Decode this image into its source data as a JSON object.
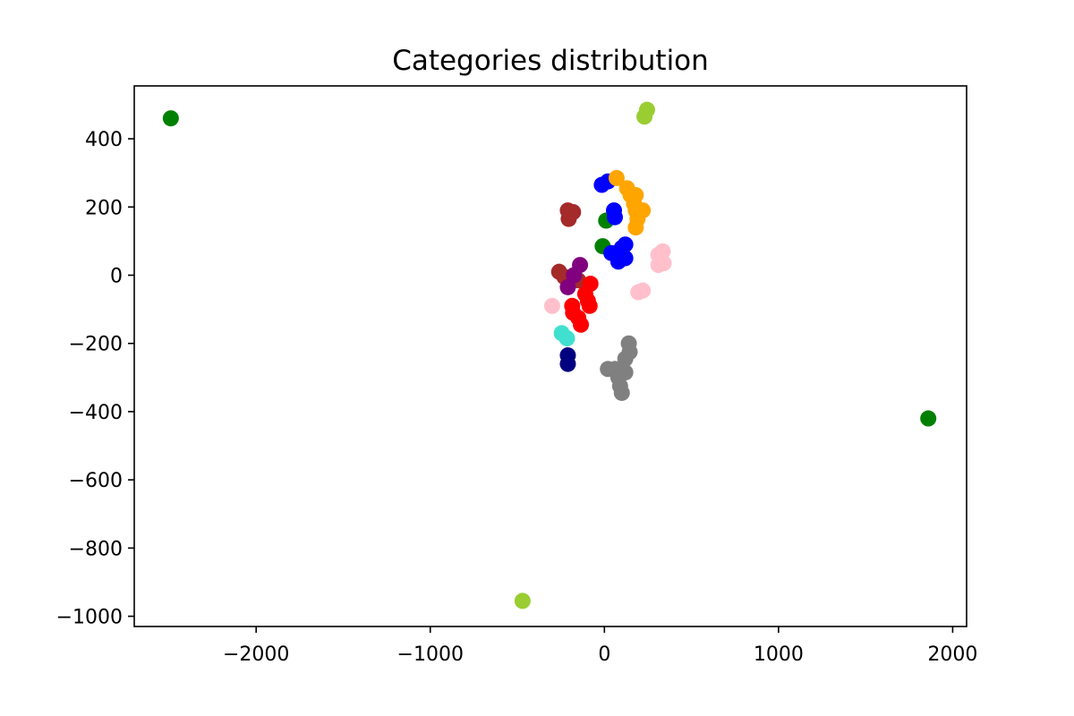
{
  "chart_data": {
    "type": "scatter",
    "title": "Categories distribution",
    "xlabel": "",
    "ylabel": "",
    "xlim": [
      -2700,
      2080
    ],
    "ylim": [
      -1030,
      555
    ],
    "xticks": [
      -2000,
      -1000,
      0,
      1000,
      2000
    ],
    "yticks": [
      400,
      200,
      0,
      -200,
      -400,
      -600,
      -800,
      -1000
    ],
    "xtick_labels": [
      "−2000",
      "−1000",
      "0",
      "1000",
      "2000"
    ],
    "ytick_labels": [
      "400",
      "200",
      "0",
      "−200",
      "−400",
      "−600",
      "−800",
      "−1000"
    ],
    "grid": false,
    "legend": "none",
    "series": [
      {
        "color": "#008000",
        "points": [
          [
            -2490,
            460
          ],
          [
            1860,
            -420
          ],
          [
            10,
            160
          ],
          [
            -10,
            85
          ]
        ]
      },
      {
        "color": "#9acd32",
        "points": [
          [
            245,
            485
          ],
          [
            230,
            465
          ],
          [
            -470,
            -955
          ]
        ]
      },
      {
        "color": "#0000ff",
        "points": [
          [
            -15,
            265
          ],
          [
            20,
            275
          ],
          [
            55,
            190
          ],
          [
            60,
            170
          ],
          [
            120,
            90
          ],
          [
            100,
            80
          ],
          [
            40,
            65
          ],
          [
            75,
            55
          ],
          [
            120,
            50
          ],
          [
            80,
            40
          ]
        ]
      },
      {
        "color": "#ffa500",
        "points": [
          [
            70,
            285
          ],
          [
            130,
            255
          ],
          [
            150,
            235
          ],
          [
            180,
            235
          ],
          [
            170,
            210
          ],
          [
            220,
            190
          ],
          [
            180,
            190
          ],
          [
            190,
            165
          ],
          [
            180,
            140
          ]
        ]
      },
      {
        "color": "#a52a2a",
        "points": [
          [
            -210,
            190
          ],
          [
            -180,
            185
          ],
          [
            -205,
            165
          ],
          [
            -260,
            10
          ],
          [
            -230,
            -5
          ],
          [
            -150,
            -15
          ]
        ]
      },
      {
        "color": "#800080",
        "points": [
          [
            -140,
            30
          ],
          [
            -175,
            0
          ],
          [
            -210,
            -35
          ]
        ]
      },
      {
        "color": "#ff0000",
        "points": [
          [
            -80,
            -25
          ],
          [
            -110,
            -55
          ],
          [
            -95,
            -75
          ],
          [
            -85,
            -90
          ],
          [
            -185,
            -90
          ],
          [
            -180,
            -110
          ],
          [
            -150,
            -125
          ],
          [
            -135,
            -145
          ]
        ]
      },
      {
        "color": "#ffc0cb",
        "points": [
          [
            335,
            70
          ],
          [
            310,
            60
          ],
          [
            340,
            35
          ],
          [
            310,
            30
          ],
          [
            220,
            -45
          ],
          [
            195,
            -50
          ],
          [
            -300,
            -90
          ]
        ]
      },
      {
        "color": "#40e0d0",
        "points": [
          [
            -245,
            -170
          ],
          [
            -215,
            -185
          ]
        ]
      },
      {
        "color": "#000080",
        "points": [
          [
            -210,
            -235
          ],
          [
            -210,
            -260
          ]
        ]
      },
      {
        "color": "#808080",
        "points": [
          [
            140,
            -200
          ],
          [
            145,
            -225
          ],
          [
            120,
            -245
          ],
          [
            20,
            -275
          ],
          [
            60,
            -275
          ],
          [
            120,
            -285
          ],
          [
            80,
            -300
          ],
          [
            90,
            -325
          ],
          [
            100,
            -345
          ]
        ]
      }
    ]
  }
}
